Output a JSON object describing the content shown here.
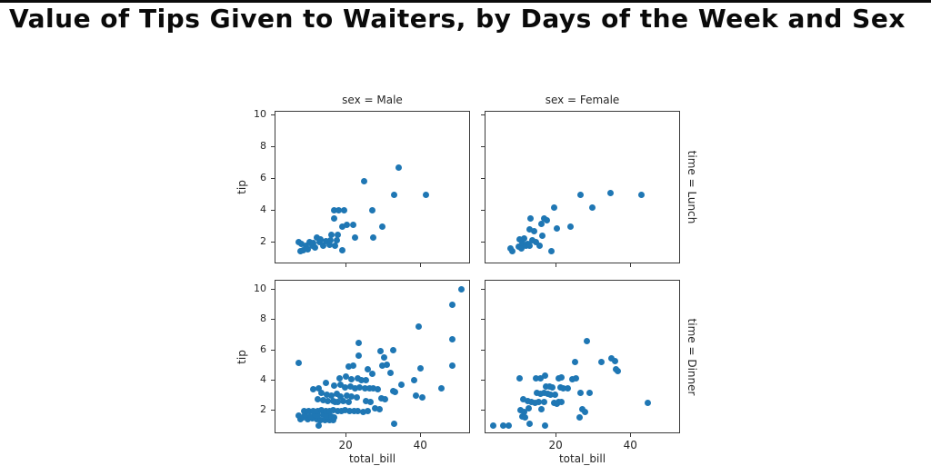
{
  "page": {
    "title": "Value of Tips Given to Waiters, by Days of the Week and Sex"
  },
  "chart_data": {
    "type": "scatter",
    "title": "Value of Tips Given to Waiters, by Days of the Week and Sex",
    "xlabel": "total_bill",
    "ylabel": "tip",
    "facet": {
      "col_var": "sex",
      "row_var": "time",
      "cols": [
        "Male",
        "Female"
      ],
      "rows": [
        "Lunch",
        "Dinner"
      ]
    },
    "xlim": [
      1.0,
      53.3
    ],
    "ylim": [
      0.5,
      10.5
    ],
    "xticks": [
      20,
      40
    ],
    "yticks": [
      2,
      4,
      6,
      8,
      10
    ],
    "grid": false,
    "legend": "none",
    "point_color": "#1f77b4",
    "panels": [
      {
        "title": "sex = Male",
        "row_label": "time = Lunch",
        "points": [
          [
            7.1,
            2.0
          ],
          [
            7.6,
            1.44
          ],
          [
            8.0,
            1.9
          ],
          [
            8.35,
            1.5
          ],
          [
            9.2,
            1.8
          ],
          [
            9.6,
            1.56
          ],
          [
            10.1,
            2.0
          ],
          [
            10.8,
            1.76
          ],
          [
            11.2,
            1.96
          ],
          [
            11.6,
            1.66
          ],
          [
            12.0,
            2.31
          ],
          [
            12.7,
            2.0
          ],
          [
            13.1,
            2.15
          ],
          [
            13.7,
            1.8
          ],
          [
            14.6,
            2.06
          ],
          [
            15.4,
            1.85
          ],
          [
            15.7,
            2.1
          ],
          [
            16.0,
            2.47
          ],
          [
            16.7,
            3.5
          ],
          [
            16.7,
            4.0
          ],
          [
            16.9,
            1.77
          ],
          [
            17.3,
            2.09
          ],
          [
            17.7,
            2.44
          ],
          [
            18.0,
            4.0
          ],
          [
            18.8,
            3.0
          ],
          [
            19.0,
            1.46
          ],
          [
            19.3,
            4.0
          ],
          [
            20.2,
            3.1
          ],
          [
            21.7,
            3.1
          ],
          [
            22.4,
            2.26
          ],
          [
            24.7,
            5.85
          ],
          [
            26.9,
            4.0
          ],
          [
            27.1,
            2.3
          ],
          [
            29.6,
            3.0
          ],
          [
            32.7,
            5.0
          ],
          [
            34.0,
            6.7
          ],
          [
            41.2,
            5.0
          ]
        ]
      },
      {
        "title": "sex = Female",
        "row_label": "time = Lunch",
        "points": [
          [
            7.7,
            1.6
          ],
          [
            8.1,
            1.43
          ],
          [
            9.8,
            1.7
          ],
          [
            10.2,
            2.2
          ],
          [
            10.6,
            1.6
          ],
          [
            10.9,
            1.95
          ],
          [
            11.3,
            2.25
          ],
          [
            11.8,
            1.75
          ],
          [
            12.4,
            1.9
          ],
          [
            12.7,
            1.8
          ],
          [
            12.8,
            2.8
          ],
          [
            13.0,
            3.5
          ],
          [
            13.6,
            2.1
          ],
          [
            13.9,
            2.66
          ],
          [
            14.5,
            2.0
          ],
          [
            15.4,
            1.8
          ],
          [
            15.9,
            3.14
          ],
          [
            16.3,
            2.4
          ],
          [
            16.7,
            3.46
          ],
          [
            17.4,
            3.4
          ],
          [
            18.6,
            1.43
          ],
          [
            19.4,
            4.2
          ],
          [
            20.0,
            2.86
          ],
          [
            23.7,
            2.95
          ],
          [
            26.5,
            5.0
          ],
          [
            29.5,
            4.2
          ],
          [
            34.5,
            5.1
          ],
          [
            42.7,
            5.0
          ]
        ]
      },
      {
        "title": "sex = Male",
        "row_label": "time = Dinner",
        "points": [
          [
            7.7,
            1.44
          ],
          [
            8.3,
            1.56
          ],
          [
            9.6,
            1.45
          ],
          [
            10.8,
            1.5
          ],
          [
            12.0,
            1.42
          ],
          [
            13.0,
            1.36
          ],
          [
            14.3,
            1.4
          ],
          [
            15.5,
            1.36
          ],
          [
            16.4,
            1.4
          ],
          [
            12.6,
            1.0
          ],
          [
            32.8,
            1.17
          ],
          [
            7.1,
            1.7
          ],
          [
            9.0,
            1.73
          ],
          [
            10.3,
            1.64
          ],
          [
            11.5,
            1.76
          ],
          [
            12.4,
            1.68
          ],
          [
            13.8,
            1.73
          ],
          [
            15.0,
            1.61
          ],
          [
            16.0,
            1.64
          ],
          [
            16.6,
            1.57
          ],
          [
            8.75,
            2.0
          ],
          [
            10.0,
            1.97
          ],
          [
            11.2,
            2.0
          ],
          [
            12.3,
            1.97
          ],
          [
            13.4,
            2.03
          ],
          [
            14.4,
            1.97
          ],
          [
            15.5,
            2.0
          ],
          [
            16.4,
            2.03
          ],
          [
            17.6,
            1.97
          ],
          [
            18.7,
            2.0
          ],
          [
            19.7,
            2.03
          ],
          [
            20.9,
            1.97
          ],
          [
            22.0,
            2.0
          ],
          [
            23.1,
            2.0
          ],
          [
            24.4,
            1.92
          ],
          [
            25.8,
            2.0
          ],
          [
            17.0,
            2.56
          ],
          [
            17.6,
            2.56
          ],
          [
            19.2,
            2.62
          ],
          [
            20.5,
            2.56
          ],
          [
            12.4,
            2.76
          ],
          [
            13.8,
            2.7
          ],
          [
            14.9,
            2.66
          ],
          [
            16.4,
            2.62
          ],
          [
            25.3,
            2.66
          ],
          [
            26.5,
            2.56
          ],
          [
            27.7,
            2.16
          ],
          [
            28.9,
            2.1
          ],
          [
            29.3,
            2.8
          ],
          [
            30.4,
            2.75
          ],
          [
            13.2,
            3.16
          ],
          [
            14.8,
            3.06
          ],
          [
            16.0,
            3.02
          ],
          [
            17.3,
            3.1
          ],
          [
            18.5,
            2.96
          ],
          [
            20.1,
            3.02
          ],
          [
            21.3,
            2.96
          ],
          [
            22.8,
            2.9
          ],
          [
            38.7,
            3.0
          ],
          [
            40.2,
            2.9
          ],
          [
            32.6,
            3.3
          ],
          [
            33.0,
            3.26
          ],
          [
            11.2,
            3.42
          ],
          [
            12.5,
            3.46
          ],
          [
            16.8,
            3.66
          ],
          [
            18.5,
            3.7
          ],
          [
            19.7,
            3.56
          ],
          [
            21.0,
            3.6
          ],
          [
            22.3,
            3.5
          ],
          [
            23.6,
            3.56
          ],
          [
            24.9,
            3.46
          ],
          [
            26.1,
            3.46
          ],
          [
            27.1,
            3.46
          ],
          [
            28.3,
            3.42
          ],
          [
            34.6,
            3.7
          ],
          [
            45.3,
            3.5
          ],
          [
            14.4,
            3.86
          ],
          [
            18.1,
            4.16
          ],
          [
            19.8,
            4.26
          ],
          [
            21.3,
            4.1
          ],
          [
            22.9,
            4.16
          ],
          [
            24.1,
            4.02
          ],
          [
            25.3,
            4.02
          ],
          [
            38.1,
            4.0
          ],
          [
            31.7,
            4.5
          ],
          [
            7.25,
            5.15
          ],
          [
            20.5,
            4.95
          ],
          [
            21.9,
            5.0
          ],
          [
            25.8,
            4.75
          ],
          [
            27.0,
            4.45
          ],
          [
            29.6,
            5.0
          ],
          [
            30.9,
            5.07
          ],
          [
            39.9,
            4.8
          ],
          [
            48.2,
            5.0
          ],
          [
            23.3,
            5.65
          ],
          [
            30.1,
            5.5
          ],
          [
            29.0,
            5.92
          ],
          [
            32.6,
            6.0
          ],
          [
            23.2,
            6.5
          ],
          [
            48.3,
            6.73
          ],
          [
            39.4,
            7.58
          ],
          [
            48.3,
            9.0
          ],
          [
            50.8,
            10.0
          ]
        ]
      },
      {
        "title": "sex = Female",
        "row_label": "time = Dinner",
        "points": [
          [
            3.07,
            1.0
          ],
          [
            5.75,
            1.0
          ],
          [
            7.25,
            1.0
          ],
          [
            17.0,
            1.01
          ],
          [
            12.8,
            1.15
          ],
          [
            10.8,
            1.62
          ],
          [
            11.7,
            1.58
          ],
          [
            26.1,
            1.54
          ],
          [
            10.4,
            2.02
          ],
          [
            11.4,
            1.94
          ],
          [
            12.5,
            2.18
          ],
          [
            16.0,
            2.08
          ],
          [
            26.9,
            2.08
          ],
          [
            27.7,
            1.94
          ],
          [
            44.3,
            2.5
          ],
          [
            11.2,
            2.77
          ],
          [
            12.2,
            2.67
          ],
          [
            13.2,
            2.61
          ],
          [
            14.2,
            2.54
          ],
          [
            15.3,
            2.57
          ],
          [
            16.8,
            2.61
          ],
          [
            19.4,
            2.5
          ],
          [
            20.2,
            2.45
          ],
          [
            20.7,
            2.57
          ],
          [
            21.4,
            2.61
          ],
          [
            14.8,
            3.17
          ],
          [
            15.8,
            3.13
          ],
          [
            16.8,
            3.17
          ],
          [
            17.6,
            3.11
          ],
          [
            18.4,
            3.07
          ],
          [
            19.6,
            3.07
          ],
          [
            26.3,
            3.2
          ],
          [
            28.9,
            3.17
          ],
          [
            17.2,
            3.6
          ],
          [
            18.2,
            3.6
          ],
          [
            18.8,
            3.56
          ],
          [
            21.1,
            3.56
          ],
          [
            21.9,
            3.5
          ],
          [
            23.1,
            3.47
          ],
          [
            10.2,
            4.12
          ],
          [
            14.4,
            4.12
          ],
          [
            15.6,
            4.16
          ],
          [
            17.0,
            4.3
          ],
          [
            20.7,
            4.16
          ],
          [
            21.4,
            4.2
          ],
          [
            24.2,
            4.06
          ],
          [
            25.1,
            4.12
          ],
          [
            24.9,
            5.2
          ],
          [
            32.0,
            5.25
          ],
          [
            34.8,
            5.45
          ],
          [
            35.6,
            5.3
          ],
          [
            35.8,
            4.76
          ],
          [
            36.4,
            4.6
          ],
          [
            28.1,
            6.6
          ]
        ]
      }
    ]
  }
}
